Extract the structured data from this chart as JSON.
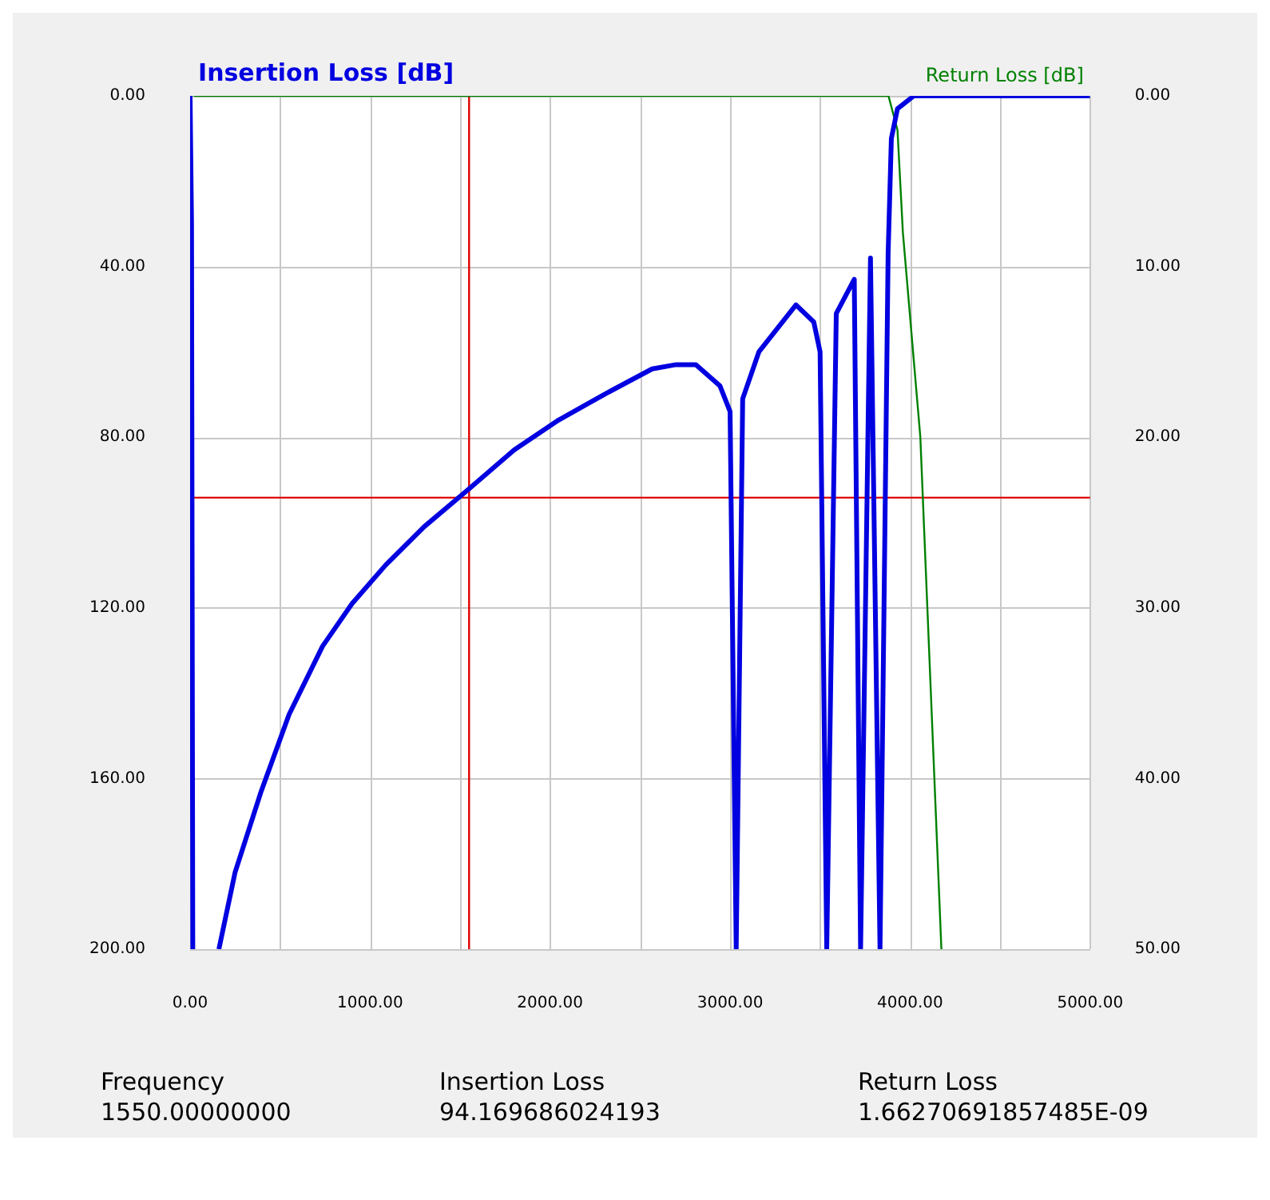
{
  "chart_data": {
    "type": "line",
    "ylabel": "Insertion Loss [dB]",
    "y2label": "Return Loss [dB]",
    "xlim": [
      0,
      5000
    ],
    "xticks": [
      {
        "value": 0,
        "label": "0.00"
      },
      {
        "value": 500,
        "label": null
      },
      {
        "value": 1000,
        "label": "1000.00"
      },
      {
        "value": 1500,
        "label": null
      },
      {
        "value": 2000,
        "label": "2000.00"
      },
      {
        "value": 2500,
        "label": null
      },
      {
        "value": 3000,
        "label": "3000.00"
      },
      {
        "value": 3500,
        "label": null
      },
      {
        "value": 4000,
        "label": "4000.00"
      },
      {
        "value": 4500,
        "label": null
      },
      {
        "value": 5000,
        "label": "5000.00"
      }
    ],
    "ylim": [
      200,
      0
    ],
    "yticks": [
      {
        "value": 0,
        "label": "0.00"
      },
      {
        "value": 40,
        "label": "40.00"
      },
      {
        "value": 80,
        "label": "80.00"
      },
      {
        "value": 120,
        "label": "120.00"
      },
      {
        "value": 160,
        "label": "160.00"
      },
      {
        "value": 200,
        "label": "200.00"
      }
    ],
    "y2lim": [
      50,
      0
    ],
    "y2ticks": [
      {
        "value": 0,
        "label": "0.00"
      },
      {
        "value": 10,
        "label": "10.00"
      },
      {
        "value": 20,
        "label": "20.00"
      },
      {
        "value": 30,
        "label": "30.00"
      },
      {
        "value": 40,
        "label": "40.00"
      },
      {
        "value": 50,
        "label": "50.00"
      }
    ],
    "grid": true,
    "marker": "none",
    "line_style": "solid",
    "series": [
      {
        "color": "#0000e0",
        "x": [
          0,
          8,
          15,
          80,
          160,
          250,
          395,
          550,
          736,
          900,
          1086,
          1300,
          1553,
          1800,
          2047,
          2300,
          2567,
          2700,
          2810,
          2944,
          3000,
          3034,
          3070,
          3160,
          3366,
          3465,
          3500,
          3537,
          3590,
          3690,
          3725,
          3780,
          3833,
          3878,
          3896,
          3930,
          4021,
          5000
        ],
        "values": [
          0,
          30,
          200,
          null,
          200,
          182,
          163,
          145,
          129,
          119,
          110,
          101,
          92,
          83,
          76,
          70,
          64,
          63,
          63,
          68,
          74,
          200,
          71,
          60,
          49,
          53,
          60,
          200,
          51,
          43,
          200,
          38,
          200,
          37,
          10,
          3,
          0,
          0
        ]
      },
      {
        "color": "#008000",
        "axis": "y2",
        "x": [
          20,
          3880,
          3930,
          3960,
          4057,
          4174
        ],
        "values": [
          0,
          0,
          2,
          8,
          20,
          50
        ]
      }
    ],
    "ref_lines": [
      {
        "axis": "x",
        "value": 1550,
        "color": "#e00000"
      },
      {
        "axis": "y",
        "value": 94.17,
        "color": "#e00000"
      }
    ],
    "annotations": [
      "Frequency",
      "Insertion Loss",
      "Return Loss",
      "1550.00000000",
      "94.169686024193",
      "1.66270691857485E-09"
    ]
  }
}
